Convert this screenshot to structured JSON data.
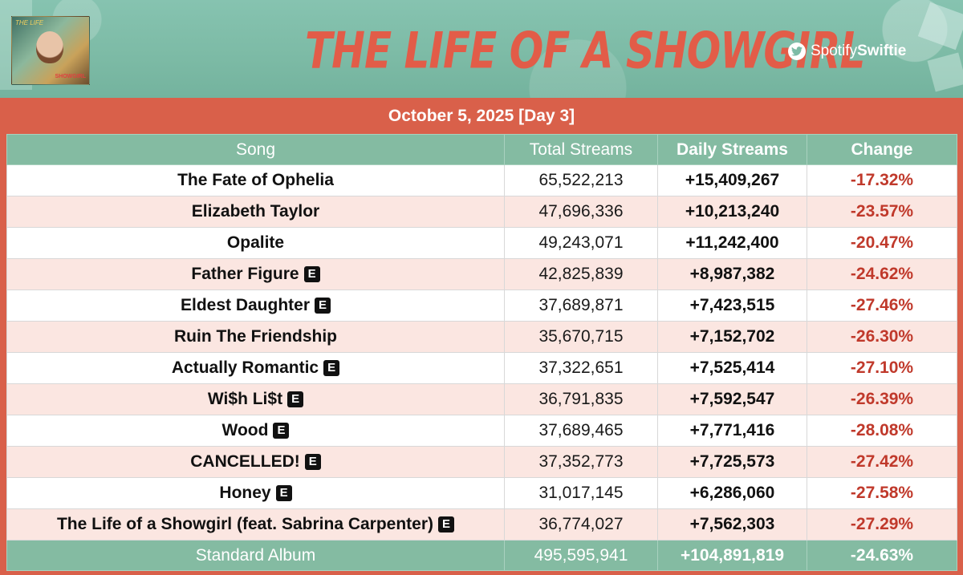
{
  "header": {
    "title": "THE LIFE OF A SHOWGIRL",
    "cover_title": "THE LIFE",
    "cover_tag": "SHOWGIRL",
    "handle_prefix": "Spotify",
    "handle_suffix": "Swiftie",
    "icon": "twitter-bird-icon"
  },
  "date": "October 5, 2025 [Day 3]",
  "table": {
    "columns": [
      "Song",
      "Total Streams",
      "Daily Streams",
      "Change"
    ],
    "rows": [
      {
        "song": "The Fate of Ophelia",
        "explicit": false,
        "total": "65,522,213",
        "daily": "+15,409,267",
        "change": "-17.32%"
      },
      {
        "song": "Elizabeth Taylor",
        "explicit": false,
        "total": "47,696,336",
        "daily": "+10,213,240",
        "change": "-23.57%"
      },
      {
        "song": "Opalite",
        "explicit": false,
        "total": "49,243,071",
        "daily": "+11,242,400",
        "change": "-20.47%"
      },
      {
        "song": "Father Figure",
        "explicit": true,
        "total": "42,825,839",
        "daily": "+8,987,382",
        "change": "-24.62%"
      },
      {
        "song": "Eldest Daughter",
        "explicit": true,
        "total": "37,689,871",
        "daily": "+7,423,515",
        "change": "-27.46%"
      },
      {
        "song": "Ruin The Friendship",
        "explicit": false,
        "total": "35,670,715",
        "daily": "+7,152,702",
        "change": "-26.30%"
      },
      {
        "song": "Actually Romantic",
        "explicit": true,
        "total": "37,322,651",
        "daily": "+7,525,414",
        "change": "-27.10%"
      },
      {
        "song": "Wi$h Li$t",
        "explicit": true,
        "total": "36,791,835",
        "daily": "+7,592,547",
        "change": "-26.39%"
      },
      {
        "song": "Wood",
        "explicit": true,
        "total": "37,689,465",
        "daily": "+7,771,416",
        "change": "-28.08%"
      },
      {
        "song": "CANCELLED!",
        "explicit": true,
        "total": "37,352,773",
        "daily": "+7,725,573",
        "change": "-27.42%"
      },
      {
        "song": "Honey",
        "explicit": true,
        "total": "31,017,145",
        "daily": "+6,286,060",
        "change": "-27.58%"
      },
      {
        "song": "The Life of a Showgirl (feat. Sabrina Carpenter)",
        "explicit": true,
        "total": "36,774,027",
        "daily": "+7,562,303",
        "change": "-27.29%"
      }
    ],
    "explicit_label": "E",
    "footer": {
      "song": "Standard Album",
      "total": "495,595,941",
      "daily": "+104,891,819",
      "change": "-24.63%"
    }
  },
  "colors": {
    "banner": "#7dbba6",
    "accent": "#d9604a",
    "header_row": "#84bba2",
    "alt_row": "#fbe6e1",
    "change_text": "#c0392b"
  }
}
